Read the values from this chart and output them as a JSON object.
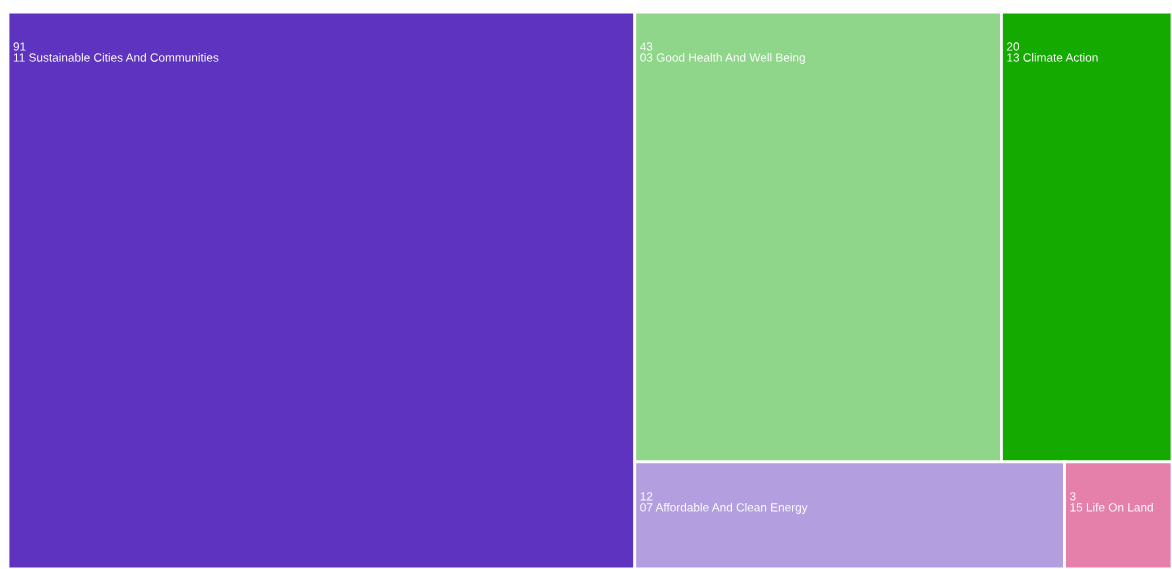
{
  "chart_data": {
    "type": "other",
    "categories": [
      "11 Sustainable Cities And Communities",
      "03 Good Health And Well Being",
      "13 Climate Action",
      "07 Affordable And Clean Energy",
      "15 Life On Land"
    ],
    "values": [
      91,
      43,
      20,
      12,
      3
    ],
    "colors": [
      "#5e33bf",
      "#8fd68a",
      "#14aa00",
      "#b39ee0",
      "#e580ab"
    ],
    "data_labels": true
  }
}
